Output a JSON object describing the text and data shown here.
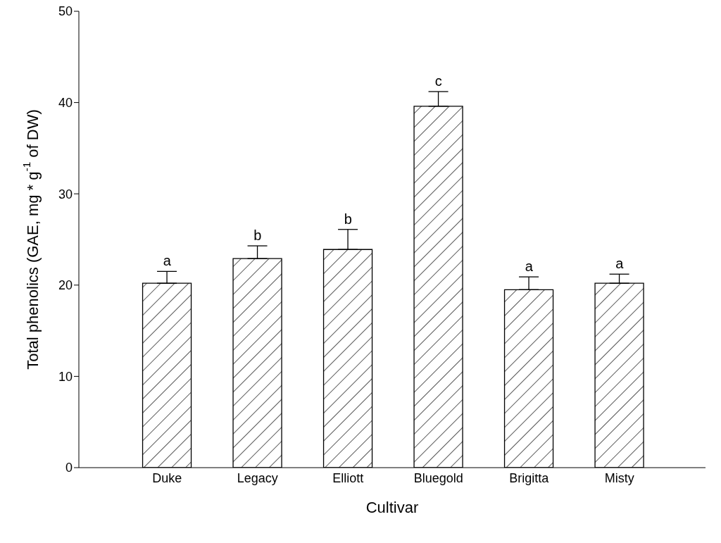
{
  "chart_data": {
    "type": "bar",
    "xlabel": "Cultivar",
    "ylabel": "Total phenolics (GAE, mg * g$^{-1}$ of DW)",
    "categories": [
      "Duke",
      "Legacy",
      "Elliott",
      "Bluegold",
      "Brigitta",
      "Misty"
    ],
    "values": [
      20.2,
      22.9,
      23.9,
      39.6,
      19.5,
      20.2
    ],
    "errors": [
      [
        20.2,
        21.5
      ],
      [
        22.9,
        24.3
      ],
      [
        23.9,
        26.1
      ],
      [
        39.6,
        41.2
      ],
      [
        19.5,
        20.9
      ],
      [
        20.2,
        21.2
      ]
    ],
    "color": "#000000",
    "ylim": [
      0,
      50
    ],
    "yticks": [
      0,
      10,
      20,
      30,
      40,
      50
    ],
    "grid": false,
    "legend": false,
    "annotations": [
      {
        "text": "a",
        "x": "Duke",
        "y": 21.5
      },
      {
        "text": "b",
        "x": "Legacy",
        "y": 24.3
      },
      {
        "text": "b",
        "x": "Elliott",
        "y": 26.1
      },
      {
        "text": "c",
        "x": "Bluegold",
        "y": 41.2
      },
      {
        "text": "a",
        "x": "Brigitta",
        "y": 20.9
      },
      {
        "text": "a",
        "x": "Misty",
        "y": 21.2
      }
    ]
  }
}
